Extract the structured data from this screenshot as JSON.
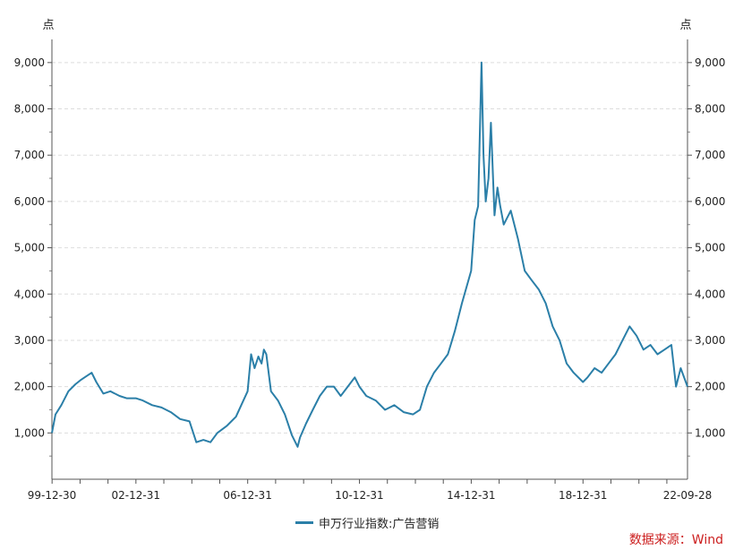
{
  "chart_data": {
    "type": "line",
    "y_unit_left": "点",
    "y_unit_right": "点",
    "ylim": [
      0,
      9500
    ],
    "yticks": [
      1000,
      2000,
      3000,
      4000,
      5000,
      6000,
      7000,
      8000,
      9000
    ],
    "ytick_labels": [
      "1,000",
      "2,000",
      "3,000",
      "4,000",
      "5,000",
      "6,000",
      "7,000",
      "8,000",
      "9,000"
    ],
    "xlim": [
      "1999-12-30",
      "2022-09-28"
    ],
    "xtick_labels": [
      {
        "date": "1999-12-30",
        "label": "99-12-30"
      },
      {
        "date": "2002-12-31",
        "label": "02-12-31"
      },
      {
        "date": "2006-12-31",
        "label": "06-12-31"
      },
      {
        "date": "2010-12-31",
        "label": "10-12-31"
      },
      {
        "date": "2014-12-31",
        "label": "14-12-31"
      },
      {
        "date": "2018-12-31",
        "label": "18-12-31"
      },
      {
        "date": "2022-09-28",
        "label": "22-09-28"
      }
    ],
    "grid": true,
    "legend_position": "bottom",
    "series": [
      {
        "name": "申万行业指数:广告营销",
        "color": "#2b7fa8",
        "x": [
          "1999-12-30",
          "2000-02-15",
          "2000-05-01",
          "2000-08-01",
          "2000-11-01",
          "2001-01-15",
          "2001-03-01",
          "2001-06-01",
          "2001-08-01",
          "2001-11-01",
          "2002-02-01",
          "2002-06-01",
          "2002-09-01",
          "2002-12-31",
          "2003-04-01",
          "2003-08-01",
          "2003-12-01",
          "2004-04-01",
          "2004-08-01",
          "2004-12-01",
          "2005-03-01",
          "2005-06-01",
          "2005-09-01",
          "2005-12-01",
          "2006-04-01",
          "2006-08-01",
          "2006-12-31",
          "2007-02-15",
          "2007-04-01",
          "2007-05-20",
          "2007-07-01",
          "2007-08-01",
          "2007-09-01",
          "2007-11-01",
          "2008-02-01",
          "2008-05-01",
          "2008-08-01",
          "2008-10-15",
          "2008-11-15",
          "2009-02-01",
          "2009-05-01",
          "2009-08-01",
          "2009-11-01",
          "2010-02-01",
          "2010-05-01",
          "2010-08-01",
          "2010-11-01",
          "2010-12-31",
          "2011-04-01",
          "2011-08-01",
          "2011-12-01",
          "2012-04-01",
          "2012-08-01",
          "2012-12-01",
          "2013-03-01",
          "2013-06-01",
          "2013-09-01",
          "2013-12-01",
          "2014-03-01",
          "2014-06-01",
          "2014-09-01",
          "2014-12-31",
          "2015-02-15",
          "2015-04-01",
          "2015-05-15",
          "2015-06-10",
          "2015-07-10",
          "2015-08-15",
          "2015-09-15",
          "2015-11-01",
          "2015-12-10",
          "2016-01-15",
          "2016-03-01",
          "2016-06-01",
          "2016-09-01",
          "2016-12-01",
          "2017-03-01",
          "2017-06-01",
          "2017-09-01",
          "2017-12-01",
          "2018-03-01",
          "2018-06-01",
          "2018-09-01",
          "2018-12-31",
          "2019-03-01",
          "2019-06-01",
          "2019-09-01",
          "2019-12-01",
          "2020-03-01",
          "2020-06-01",
          "2020-09-01",
          "2020-12-01",
          "2021-03-01",
          "2021-06-01",
          "2021-09-01",
          "2021-12-01",
          "2022-03-01",
          "2022-05-01",
          "2022-07-01",
          "2022-09-28"
        ],
        "values": [
          1000,
          1400,
          1600,
          1900,
          2050,
          2150,
          2200,
          2300,
          2100,
          1850,
          1900,
          1800,
          1750,
          1750,
          1700,
          1600,
          1550,
          1450,
          1300,
          1250,
          800,
          850,
          800,
          1000,
          1150,
          1350,
          1900,
          2700,
          2400,
          2650,
          2500,
          2800,
          2700,
          1900,
          1700,
          1400,
          950,
          700,
          900,
          1200,
          1500,
          1800,
          2000,
          2000,
          1800,
          2000,
          2200,
          2000,
          1800,
          1700,
          1500,
          1600,
          1450,
          1400,
          1500,
          2000,
          2300,
          2500,
          2700,
          3200,
          3800,
          4500,
          5600,
          5900,
          9000,
          7000,
          6000,
          6500,
          7700,
          5700,
          6300,
          5900,
          5500,
          5800,
          5200,
          4500,
          4300,
          4100,
          3800,
          3300,
          3000,
          2500,
          2300,
          2100,
          2200,
          2400,
          2300,
          2500,
          2700,
          3000,
          3300,
          3100,
          2800,
          2900,
          2700,
          2800,
          2900,
          2000,
          2400,
          2000
        ]
      }
    ]
  },
  "legend": {
    "label": "申万行业指数:广告营销"
  },
  "source": {
    "text": "数据来源：Wind",
    "color": "#cc1f1f"
  }
}
